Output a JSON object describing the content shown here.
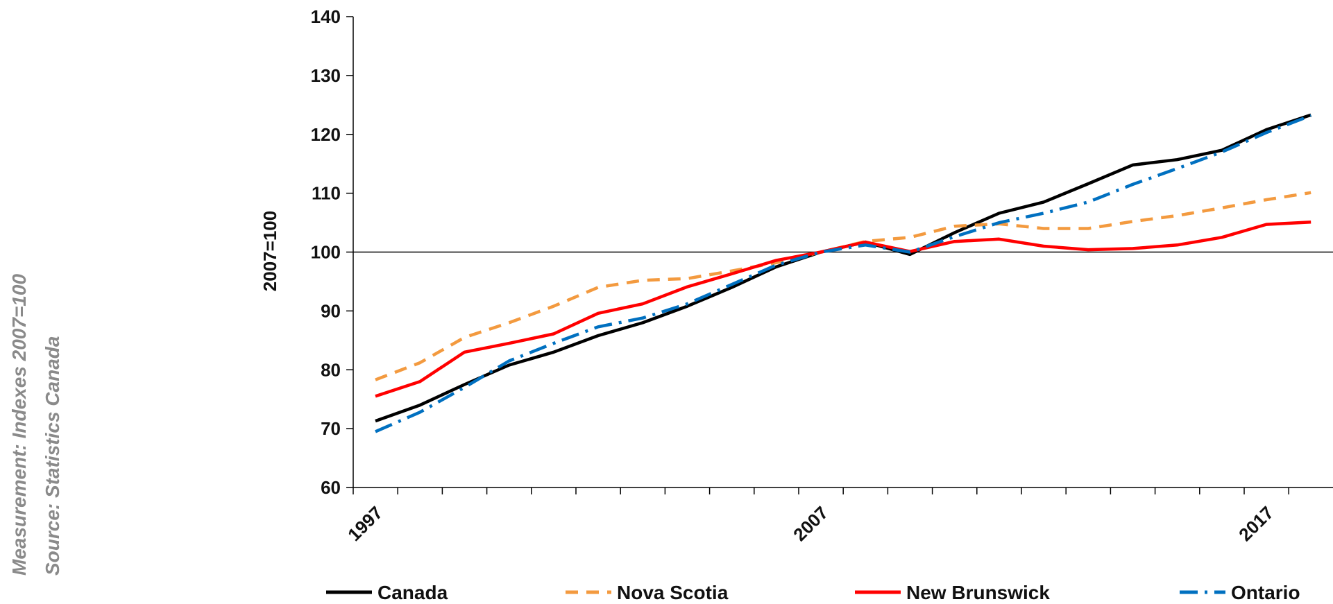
{
  "side_notes": {
    "measurement": "Measurement: Indexes 2007=100",
    "source": "Source: Statistics Canada"
  },
  "chart_data": {
    "type": "line",
    "ylabel": "2007=100",
    "xlabel": "",
    "ylim": [
      60,
      140
    ],
    "yticks": [
      60,
      70,
      80,
      90,
      100,
      110,
      120,
      130,
      140
    ],
    "xlim": [
      1997,
      2019
    ],
    "xtick_labels": [
      "1997",
      "2007",
      "2017"
    ],
    "reference_line": 100,
    "grid": false,
    "legend_position": "bottom",
    "x": [
      1997,
      1998,
      1999,
      2000,
      2001,
      2002,
      2003,
      2004,
      2005,
      2006,
      2007,
      2008,
      2009,
      2010,
      2011,
      2012,
      2013,
      2014,
      2015,
      2016,
      2017,
      2018
    ],
    "series": [
      {
        "name": "Canada",
        "color": "#000000",
        "dash": "solid",
        "values": [
          71.3,
          74.0,
          77.5,
          80.8,
          83.0,
          85.8,
          88.0,
          90.8,
          94.0,
          97.5,
          100.0,
          101.7,
          99.6,
          103.3,
          106.6,
          108.5,
          111.6,
          114.8,
          115.7,
          117.3,
          120.8,
          123.3
        ]
      },
      {
        "name": "Nova Scotia",
        "color": "#f39a3f",
        "dash": "dash",
        "values": [
          78.3,
          81.2,
          85.5,
          88.0,
          90.8,
          94.0,
          95.2,
          95.5,
          96.8,
          98.2,
          100.0,
          101.8,
          102.5,
          104.4,
          104.8,
          104.0,
          104.0,
          105.2,
          106.2,
          107.5,
          108.9,
          110.1
        ]
      },
      {
        "name": "New Brunswick",
        "color": "#ff0000",
        "dash": "solid",
        "values": [
          75.5,
          78.0,
          83.0,
          84.5,
          86.1,
          89.6,
          91.2,
          94.1,
          96.3,
          98.6,
          100.0,
          101.7,
          100.1,
          101.8,
          102.2,
          101.0,
          100.4,
          100.6,
          101.2,
          102.5,
          104.7,
          105.1
        ]
      },
      {
        "name": "Ontario",
        "color": "#0070c0",
        "dash": "dashdot",
        "values": [
          69.5,
          72.8,
          77.0,
          81.5,
          84.5,
          87.3,
          88.8,
          91.2,
          94.5,
          97.8,
          100.0,
          101.2,
          100.0,
          102.6,
          105.0,
          106.6,
          108.5,
          111.5,
          114.2,
          117.0,
          120.3,
          123.2
        ]
      }
    ]
  }
}
